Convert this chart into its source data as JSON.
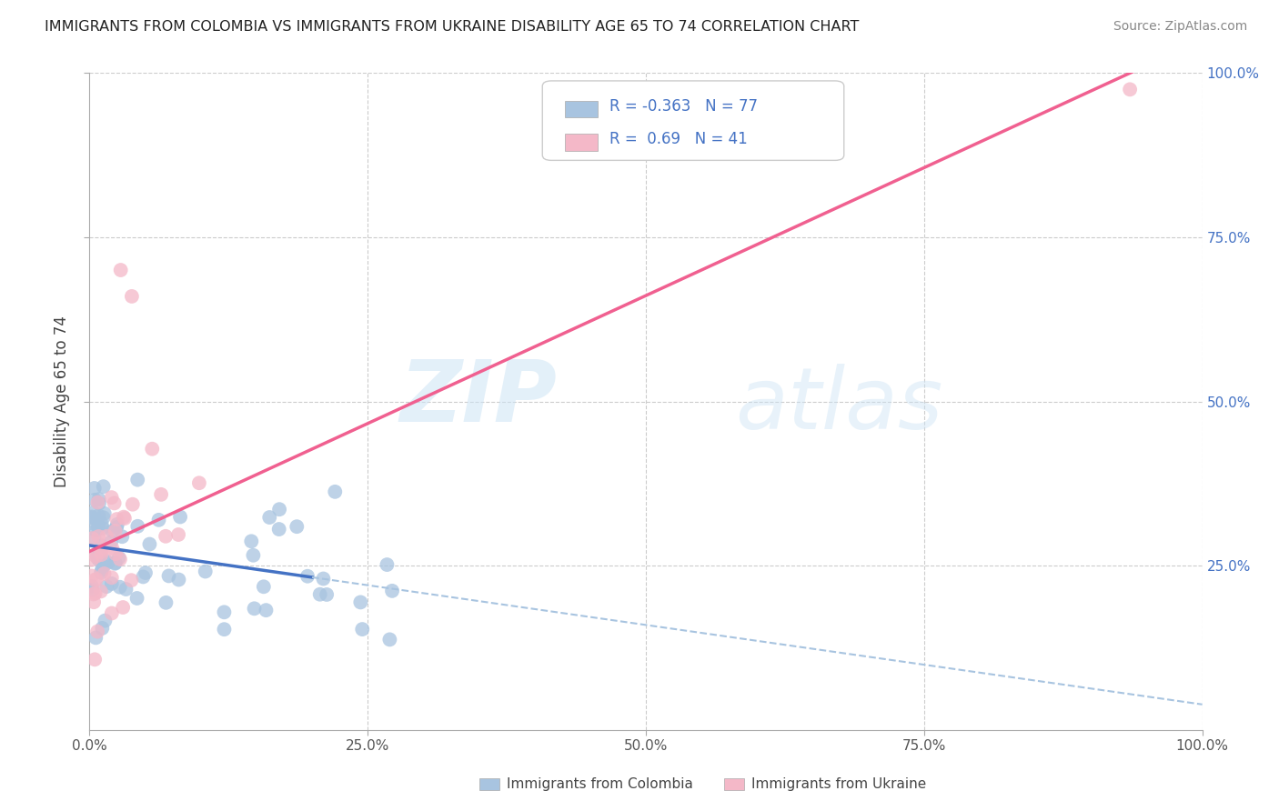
{
  "title": "IMMIGRANTS FROM COLOMBIA VS IMMIGRANTS FROM UKRAINE DISABILITY AGE 65 TO 74 CORRELATION CHART",
  "source": "Source: ZipAtlas.com",
  "ylabel": "Disability Age 65 to 74",
  "legend_colombia": "Immigrants from Colombia",
  "legend_ukraine": "Immigrants from Ukraine",
  "r_colombia": -0.363,
  "n_colombia": 77,
  "r_ukraine": 0.69,
  "n_ukraine": 41,
  "color_colombia": "#a8c4e0",
  "color_ukraine": "#f4b8c8",
  "line_colombia": "#4472c4",
  "line_ukraine": "#f06090",
  "line_colombia_dashed": "#a8c4e0",
  "xlim": [
    0,
    1
  ],
  "ylim": [
    0,
    1
  ],
  "xtick_labels": [
    "0.0%",
    "25.0%",
    "50.0%",
    "75.0%",
    "100.0%"
  ],
  "xtick_vals": [
    0,
    0.25,
    0.5,
    0.75,
    1.0
  ],
  "ytick_labels": [
    "25.0%",
    "50.0%",
    "75.0%",
    "100.0%"
  ],
  "ytick_vals": [
    0.25,
    0.5,
    0.75,
    1.0
  ],
  "watermark_zip": "ZIP",
  "watermark_atlas": "atlas",
  "background_color": "#ffffff",
  "grid_color": "#cccccc",
  "title_fontsize": 11.5,
  "source_fontsize": 10,
  "tick_fontsize": 11,
  "ylabel_fontsize": 12,
  "legend_fontsize": 12
}
